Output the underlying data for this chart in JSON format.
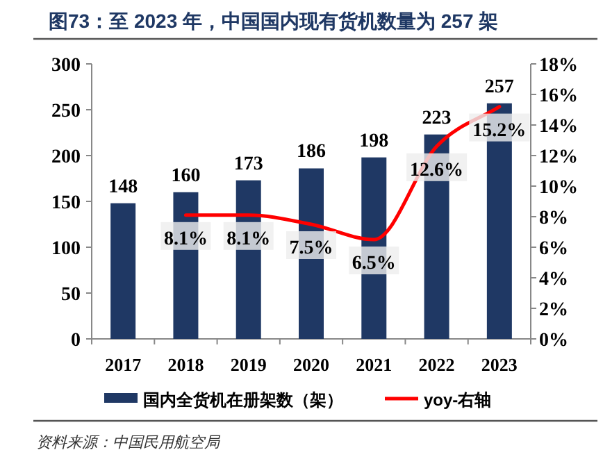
{
  "chart_data": {
    "type": "bar",
    "title": "图73：至 2023 年，中国国内现有货机数量为 257 架",
    "categories": [
      "2017",
      "2018",
      "2019",
      "2020",
      "2021",
      "2022",
      "2023"
    ],
    "series": [
      {
        "name": "国内全货机在册架数（架）",
        "color": "#1f3864",
        "values": [
          148,
          160,
          173,
          186,
          198,
          223,
          257
        ],
        "value_labels": [
          "148",
          "160",
          "173",
          "186",
          "198",
          "223",
          "257"
        ]
      },
      {
        "name": "yoy-右轴",
        "type": "line",
        "axis": "y2",
        "color": "#ff0000",
        "values": [
          null,
          8.1,
          8.1,
          7.5,
          6.5,
          12.6,
          15.2
        ],
        "value_labels": [
          null,
          "8.1%",
          "8.1%",
          "7.5%",
          "6.5%",
          "12.6%",
          "15.2%"
        ]
      }
    ],
    "ylim": [
      0,
      300
    ],
    "yticks": [
      0,
      50,
      100,
      150,
      200,
      250,
      300
    ],
    "y2lim": [
      0,
      18
    ],
    "y2ticks": [
      {
        "value": 0,
        "label": "0%"
      },
      {
        "value": 2,
        "label": "2%"
      },
      {
        "value": 4,
        "label": "4%"
      },
      {
        "value": 6,
        "label": "6%"
      },
      {
        "value": 8,
        "label": "8%"
      },
      {
        "value": 10,
        "label": "10%"
      },
      {
        "value": 12,
        "label": "12%"
      },
      {
        "value": 14,
        "label": "14%"
      },
      {
        "value": 16,
        "label": "16%"
      },
      {
        "value": 18,
        "label": "18%"
      }
    ],
    "legend": "bottom",
    "grid": false,
    "annotations": [
      "资料来源：中国民用航空局"
    ]
  }
}
